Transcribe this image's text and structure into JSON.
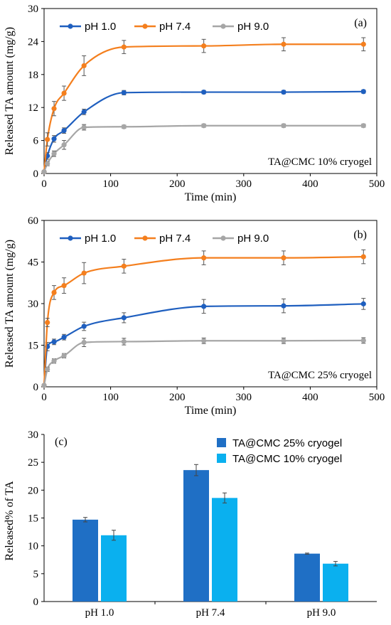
{
  "chart_data": [
    {
      "type": "line",
      "panel_label": "(a)",
      "annotation": "TA@CMC  10% cryogel",
      "xlabel": "Time (min)",
      "ylabel": "Released TA amount  (mg/g)",
      "xlim": [
        0,
        500
      ],
      "ylim": [
        0,
        30
      ],
      "xticks": [
        "0",
        "100",
        "200",
        "300",
        "400",
        "500"
      ],
      "yticks": [
        "0",
        "6",
        "12",
        "18",
        "24",
        "30"
      ],
      "x": [
        0,
        5,
        15,
        30,
        60,
        120,
        240,
        360,
        480
      ],
      "legend_position": "top-left",
      "grid": false,
      "series": [
        {
          "name": "pH 1.0",
          "color": "#1f5fbf",
          "values": [
            0.3,
            3.2,
            6.3,
            7.8,
            11.2,
            14.7,
            14.8,
            14.8,
            14.9
          ],
          "errors": [
            0.2,
            0.6,
            0.6,
            0.5,
            0.5,
            0.4,
            0.3,
            0.3,
            0.3
          ]
        },
        {
          "name": "pH 7.4",
          "color": "#f47f1e",
          "values": [
            0.3,
            6.2,
            11.8,
            14.6,
            19.6,
            23.0,
            23.2,
            23.5,
            23.5
          ],
          "errors": [
            0.2,
            1.2,
            1.3,
            1.3,
            1.8,
            1.2,
            1.2,
            1.2,
            1.2
          ]
        },
        {
          "name": "pH 9.0",
          "color": "#a6a6a6",
          "values": [
            0.3,
            1.8,
            3.6,
            5.2,
            8.4,
            8.5,
            8.7,
            8.7,
            8.7
          ],
          "errors": [
            0.2,
            0.4,
            0.5,
            0.8,
            0.5,
            0.3,
            0.3,
            0.3,
            0.3
          ]
        }
      ]
    },
    {
      "type": "line",
      "panel_label": "(b)",
      "annotation": "TA@CMC  25% cryogel",
      "xlabel": "Time (min)",
      "ylabel": "Released TA amount  (mg/g)",
      "xlim": [
        0,
        500
      ],
      "ylim": [
        0,
        60
      ],
      "xticks": [
        "0",
        "100",
        "200",
        "300",
        "400",
        "500"
      ],
      "yticks": [
        "0",
        "15",
        "30",
        "45",
        "60"
      ],
      "x": [
        0,
        5,
        15,
        30,
        60,
        120,
        240,
        360,
        480
      ],
      "legend_position": "top-left",
      "grid": false,
      "series": [
        {
          "name": "pH 1.0",
          "color": "#1f5fbf",
          "values": [
            0.5,
            14.5,
            16.2,
            17.9,
            21.8,
            24.9,
            29.0,
            29.2,
            29.9
          ],
          "errors": [
            0.3,
            1.5,
            1.0,
            1.0,
            1.5,
            1.8,
            2.5,
            2.5,
            2.0
          ]
        },
        {
          "name": "pH 7.4",
          "color": "#f47f1e",
          "values": [
            0.5,
            23.2,
            34.0,
            36.5,
            41.0,
            43.5,
            46.5,
            46.5,
            46.9
          ],
          "errors": [
            0.3,
            1.5,
            2.5,
            2.8,
            3.8,
            2.5,
            2.5,
            2.5,
            2.5
          ]
        },
        {
          "name": "pH 9.0",
          "color": "#a6a6a6",
          "values": [
            0.5,
            6.3,
            9.3,
            11.2,
            16.0,
            16.3,
            16.6,
            16.6,
            16.7
          ],
          "errors": [
            0.3,
            0.8,
            0.8,
            0.8,
            1.5,
            1.2,
            1.0,
            1.0,
            1.0
          ]
        }
      ]
    },
    {
      "type": "bar",
      "panel_label": "(c)",
      "ylabel": "Released% of TA",
      "ylim": [
        0,
        30
      ],
      "yticks": [
        "0",
        "5",
        "10",
        "15",
        "20",
        "25",
        "30"
      ],
      "categories": [
        "pH 1.0",
        "pH 7.4",
        "pH 9.0"
      ],
      "legend_position": "top-right",
      "grid": false,
      "series": [
        {
          "name": "TA@CMC  25% cryogel",
          "color": "#1f6fc5",
          "values": [
            14.7,
            23.6,
            8.6
          ],
          "errors": [
            0.4,
            1.0,
            0.1
          ]
        },
        {
          "name": "TA@CMC  10% cryogel",
          "color": "#0ab0ef",
          "values": [
            11.9,
            18.6,
            6.8
          ],
          "errors": [
            0.9,
            0.9,
            0.4
          ]
        }
      ]
    }
  ]
}
